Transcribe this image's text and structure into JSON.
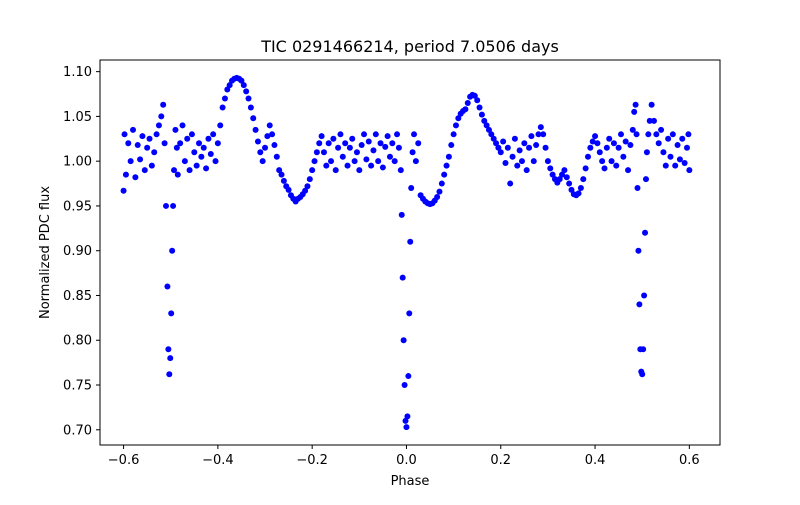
{
  "chart_data": {
    "type": "scatter",
    "title": "TIC 0291466214, period 7.0506 days",
    "xlabel": "Phase",
    "ylabel": "Normalized PDC flux",
    "xlim": [
      -0.65,
      0.665
    ],
    "ylim": [
      0.683,
      1.113
    ],
    "x_ticks": [
      -0.6,
      -0.4,
      -0.2,
      0.0,
      0.2,
      0.4,
      0.6
    ],
    "x_tick_labels": [
      "−0.6",
      "−0.4",
      "−0.2",
      "0.0",
      "0.2",
      "0.4",
      "0.6"
    ],
    "y_ticks": [
      0.7,
      0.75,
      0.8,
      0.85,
      0.9,
      0.95,
      1.0,
      1.05,
      1.1
    ],
    "y_tick_labels": [
      "0.70",
      "0.75",
      "0.80",
      "0.85",
      "0.90",
      "0.95",
      "1.00",
      "1.05",
      "1.10"
    ],
    "grid": false,
    "marker_color": "#0000ff",
    "series": [
      {
        "points": [
          [
            -0.6,
            0.967
          ],
          [
            -0.598,
            1.03
          ],
          [
            -0.595,
            0.985
          ],
          [
            -0.59,
            1.02
          ],
          [
            -0.585,
            1.0
          ],
          [
            -0.58,
            1.035
          ],
          [
            -0.575,
            0.982
          ],
          [
            -0.57,
            1.018
          ],
          [
            -0.565,
            1.002
          ],
          [
            -0.56,
            1.028
          ],
          [
            -0.555,
            0.99
          ],
          [
            -0.55,
            1.015
          ],
          [
            -0.545,
            1.025
          ],
          [
            -0.54,
            0.995
          ],
          [
            -0.535,
            1.01
          ],
          [
            -0.53,
            1.03
          ],
          [
            -0.525,
            1.04
          ],
          [
            -0.52,
            1.05
          ],
          [
            -0.516,
            1.063
          ],
          [
            -0.513,
            1.02
          ],
          [
            -0.51,
            0.95
          ],
          [
            -0.507,
            0.86
          ],
          [
            -0.505,
            0.79
          ],
          [
            -0.503,
            0.762
          ],
          [
            -0.501,
            0.78
          ],
          [
            -0.499,
            0.83
          ],
          [
            -0.497,
            0.9
          ],
          [
            -0.495,
            0.95
          ],
          [
            -0.493,
            0.99
          ],
          [
            -0.49,
            1.035
          ],
          [
            -0.487,
            1.015
          ],
          [
            -0.485,
            0.985
          ],
          [
            -0.48,
            1.02
          ],
          [
            -0.475,
            1.04
          ],
          [
            -0.47,
            1.0
          ],
          [
            -0.465,
            1.025
          ],
          [
            -0.46,
            0.99
          ],
          [
            -0.455,
            1.03
          ],
          [
            -0.45,
            1.01
          ],
          [
            -0.445,
            0.995
          ],
          [
            -0.44,
            1.02
          ],
          [
            -0.435,
            1.005
          ],
          [
            -0.43,
            1.015
          ],
          [
            -0.425,
            0.992
          ],
          [
            -0.42,
            1.025
          ],
          [
            -0.415,
            1.008
          ],
          [
            -0.41,
            1.03
          ],
          [
            -0.405,
            1.0
          ],
          [
            -0.4,
            1.02
          ],
          [
            -0.395,
            1.04
          ],
          [
            -0.39,
            1.06
          ],
          [
            -0.385,
            1.07
          ],
          [
            -0.38,
            1.08
          ],
          [
            -0.375,
            1.085
          ],
          [
            -0.37,
            1.09
          ],
          [
            -0.365,
            1.092
          ],
          [
            -0.36,
            1.093
          ],
          [
            -0.355,
            1.092
          ],
          [
            -0.35,
            1.09
          ],
          [
            -0.345,
            1.085
          ],
          [
            -0.34,
            1.078
          ],
          [
            -0.335,
            1.07
          ],
          [
            -0.33,
            1.06
          ],
          [
            -0.325,
            1.048
          ],
          [
            -0.32,
            1.035
          ],
          [
            -0.315,
            1.022
          ],
          [
            -0.31,
            1.01
          ],
          [
            -0.305,
            1.0
          ],
          [
            -0.3,
            1.015
          ],
          [
            -0.295,
            1.028
          ],
          [
            -0.29,
            1.04
          ],
          [
            -0.285,
            1.03
          ],
          [
            -0.28,
            1.018
          ],
          [
            -0.275,
            1.005
          ],
          [
            -0.27,
            0.99
          ],
          [
            -0.265,
            0.985
          ],
          [
            -0.26,
            0.978
          ],
          [
            -0.255,
            0.972
          ],
          [
            -0.25,
            0.968
          ],
          [
            -0.245,
            0.962
          ],
          [
            -0.24,
            0.958
          ],
          [
            -0.235,
            0.955
          ],
          [
            -0.23,
            0.958
          ],
          [
            -0.225,
            0.96
          ],
          [
            -0.22,
            0.963
          ],
          [
            -0.215,
            0.967
          ],
          [
            -0.21,
            0.972
          ],
          [
            -0.205,
            0.98
          ],
          [
            -0.2,
            0.99
          ],
          [
            -0.195,
            1.0
          ],
          [
            -0.19,
            1.01
          ],
          [
            -0.185,
            1.02
          ],
          [
            -0.18,
            1.028
          ],
          [
            -0.175,
            1.01
          ],
          [
            -0.17,
            0.995
          ],
          [
            -0.165,
            1.02
          ],
          [
            -0.16,
            1.0
          ],
          [
            -0.155,
            1.025
          ],
          [
            -0.15,
            0.99
          ],
          [
            -0.145,
            1.015
          ],
          [
            -0.14,
            1.03
          ],
          [
            -0.135,
            1.005
          ],
          [
            -0.13,
            1.02
          ],
          [
            -0.125,
            0.995
          ],
          [
            -0.12,
            1.015
          ],
          [
            -0.115,
            1.025
          ],
          [
            -0.11,
            1.0
          ],
          [
            -0.105,
            1.01
          ],
          [
            -0.1,
            0.99
          ],
          [
            -0.095,
            1.018
          ],
          [
            -0.09,
            1.03
          ],
          [
            -0.085,
            1.002
          ],
          [
            -0.08,
            1.022
          ],
          [
            -0.075,
            0.995
          ],
          [
            -0.07,
            1.012
          ],
          [
            -0.065,
            1.03
          ],
          [
            -0.06,
            1.0
          ],
          [
            -0.055,
            1.02
          ],
          [
            -0.05,
            0.993
          ],
          [
            -0.045,
            1.016
          ],
          [
            -0.04,
            1.028
          ],
          [
            -0.035,
            1.005
          ],
          [
            -0.03,
            1.02
          ],
          [
            -0.025,
            1.0
          ],
          [
            -0.02,
            1.03
          ],
          [
            -0.016,
            1.015
          ],
          [
            -0.012,
            0.99
          ],
          [
            -0.01,
            0.94
          ],
          [
            -0.008,
            0.87
          ],
          [
            -0.006,
            0.8
          ],
          [
            -0.004,
            0.75
          ],
          [
            -0.002,
            0.71
          ],
          [
            0.0,
            0.703
          ],
          [
            0.002,
            0.715
          ],
          [
            0.004,
            0.76
          ],
          [
            0.006,
            0.83
          ],
          [
            0.008,
            0.91
          ],
          [
            0.01,
            0.97
          ],
          [
            0.013,
            1.01
          ],
          [
            0.016,
            1.03
          ],
          [
            0.02,
            1.0
          ],
          [
            0.025,
            1.02
          ],
          [
            0.03,
            0.962
          ],
          [
            0.035,
            0.958
          ],
          [
            0.04,
            0.955
          ],
          [
            0.045,
            0.953
          ],
          [
            0.05,
            0.952
          ],
          [
            0.055,
            0.953
          ],
          [
            0.06,
            0.956
          ],
          [
            0.065,
            0.96
          ],
          [
            0.07,
            0.966
          ],
          [
            0.075,
            0.975
          ],
          [
            0.08,
            0.985
          ],
          [
            0.085,
            0.995
          ],
          [
            0.09,
            1.005
          ],
          [
            0.095,
            1.018
          ],
          [
            0.1,
            1.03
          ],
          [
            0.105,
            1.04
          ],
          [
            0.11,
            1.048
          ],
          [
            0.115,
            1.053
          ],
          [
            0.12,
            1.056
          ],
          [
            0.125,
            1.058
          ],
          [
            0.13,
            1.065
          ],
          [
            0.135,
            1.072
          ],
          [
            0.14,
            1.074
          ],
          [
            0.145,
            1.073
          ],
          [
            0.15,
            1.068
          ],
          [
            0.155,
            1.06
          ],
          [
            0.16,
            1.052
          ],
          [
            0.165,
            1.045
          ],
          [
            0.17,
            1.04
          ],
          [
            0.175,
            1.035
          ],
          [
            0.18,
            1.03
          ],
          [
            0.185,
            1.025
          ],
          [
            0.19,
            1.02
          ],
          [
            0.195,
            1.015
          ],
          [
            0.2,
            1.01
          ],
          [
            0.205,
            1.022
          ],
          [
            0.21,
            0.998
          ],
          [
            0.215,
            1.015
          ],
          [
            0.22,
            0.975
          ],
          [
            0.225,
            1.005
          ],
          [
            0.23,
            1.025
          ],
          [
            0.235,
            0.995
          ],
          [
            0.24,
            1.012
          ],
          [
            0.245,
            1.0
          ],
          [
            0.25,
            1.02
          ],
          [
            0.255,
            0.99
          ],
          [
            0.26,
            1.015
          ],
          [
            0.265,
            1.028
          ],
          [
            0.27,
            1.0
          ],
          [
            0.275,
            1.018
          ],
          [
            0.28,
            1.03
          ],
          [
            0.285,
            1.038
          ],
          [
            0.29,
            1.03
          ],
          [
            0.295,
            1.015
          ],
          [
            0.3,
            1.0
          ],
          [
            0.305,
            0.992
          ],
          [
            0.31,
            0.985
          ],
          [
            0.315,
            0.98
          ],
          [
            0.32,
            0.976
          ],
          [
            0.325,
            0.98
          ],
          [
            0.33,
            0.985
          ],
          [
            0.335,
            0.99
          ],
          [
            0.34,
            0.982
          ],
          [
            0.345,
            0.975
          ],
          [
            0.35,
            0.968
          ],
          [
            0.355,
            0.963
          ],
          [
            0.36,
            0.962
          ],
          [
            0.365,
            0.964
          ],
          [
            0.37,
            0.97
          ],
          [
            0.375,
            0.98
          ],
          [
            0.38,
            0.992
          ],
          [
            0.385,
            1.005
          ],
          [
            0.39,
            1.015
          ],
          [
            0.395,
            1.022
          ],
          [
            0.4,
            1.028
          ],
          [
            0.405,
            1.02
          ],
          [
            0.41,
            1.01
          ],
          [
            0.415,
            1.0
          ],
          [
            0.42,
            0.992
          ],
          [
            0.425,
            1.015
          ],
          [
            0.43,
            1.025
          ],
          [
            0.435,
            1.0
          ],
          [
            0.44,
            1.02
          ],
          [
            0.445,
            0.995
          ],
          [
            0.45,
            1.015
          ],
          [
            0.455,
            1.03
          ],
          [
            0.46,
            1.005
          ],
          [
            0.465,
            1.022
          ],
          [
            0.47,
            0.99
          ],
          [
            0.475,
            1.018
          ],
          [
            0.48,
            1.035
          ],
          [
            0.483,
            1.055
          ],
          [
            0.486,
            1.063
          ],
          [
            0.488,
            1.03
          ],
          [
            0.49,
            0.97
          ],
          [
            0.492,
            0.9
          ],
          [
            0.494,
            0.84
          ],
          [
            0.496,
            0.79
          ],
          [
            0.498,
            0.765
          ],
          [
            0.5,
            0.762
          ],
          [
            0.502,
            0.79
          ],
          [
            0.504,
            0.85
          ],
          [
            0.506,
            0.92
          ],
          [
            0.508,
            0.98
          ],
          [
            0.51,
            1.01
          ],
          [
            0.513,
            1.03
          ],
          [
            0.516,
            1.045
          ],
          [
            0.52,
            1.063
          ],
          [
            0.525,
            1.045
          ],
          [
            0.53,
            1.03
          ],
          [
            0.535,
            1.02
          ],
          [
            0.54,
            1.035
          ],
          [
            0.545,
            1.01
          ],
          [
            0.55,
            0.995
          ],
          [
            0.555,
            1.025
          ],
          [
            0.56,
            1.005
          ],
          [
            0.565,
            1.03
          ],
          [
            0.57,
            0.995
          ],
          [
            0.575,
            1.018
          ],
          [
            0.58,
            1.002
          ],
          [
            0.585,
            1.025
          ],
          [
            0.59,
            0.998
          ],
          [
            0.595,
            1.015
          ],
          [
            0.598,
            1.03
          ],
          [
            0.6,
            0.99
          ]
        ]
      }
    ]
  }
}
